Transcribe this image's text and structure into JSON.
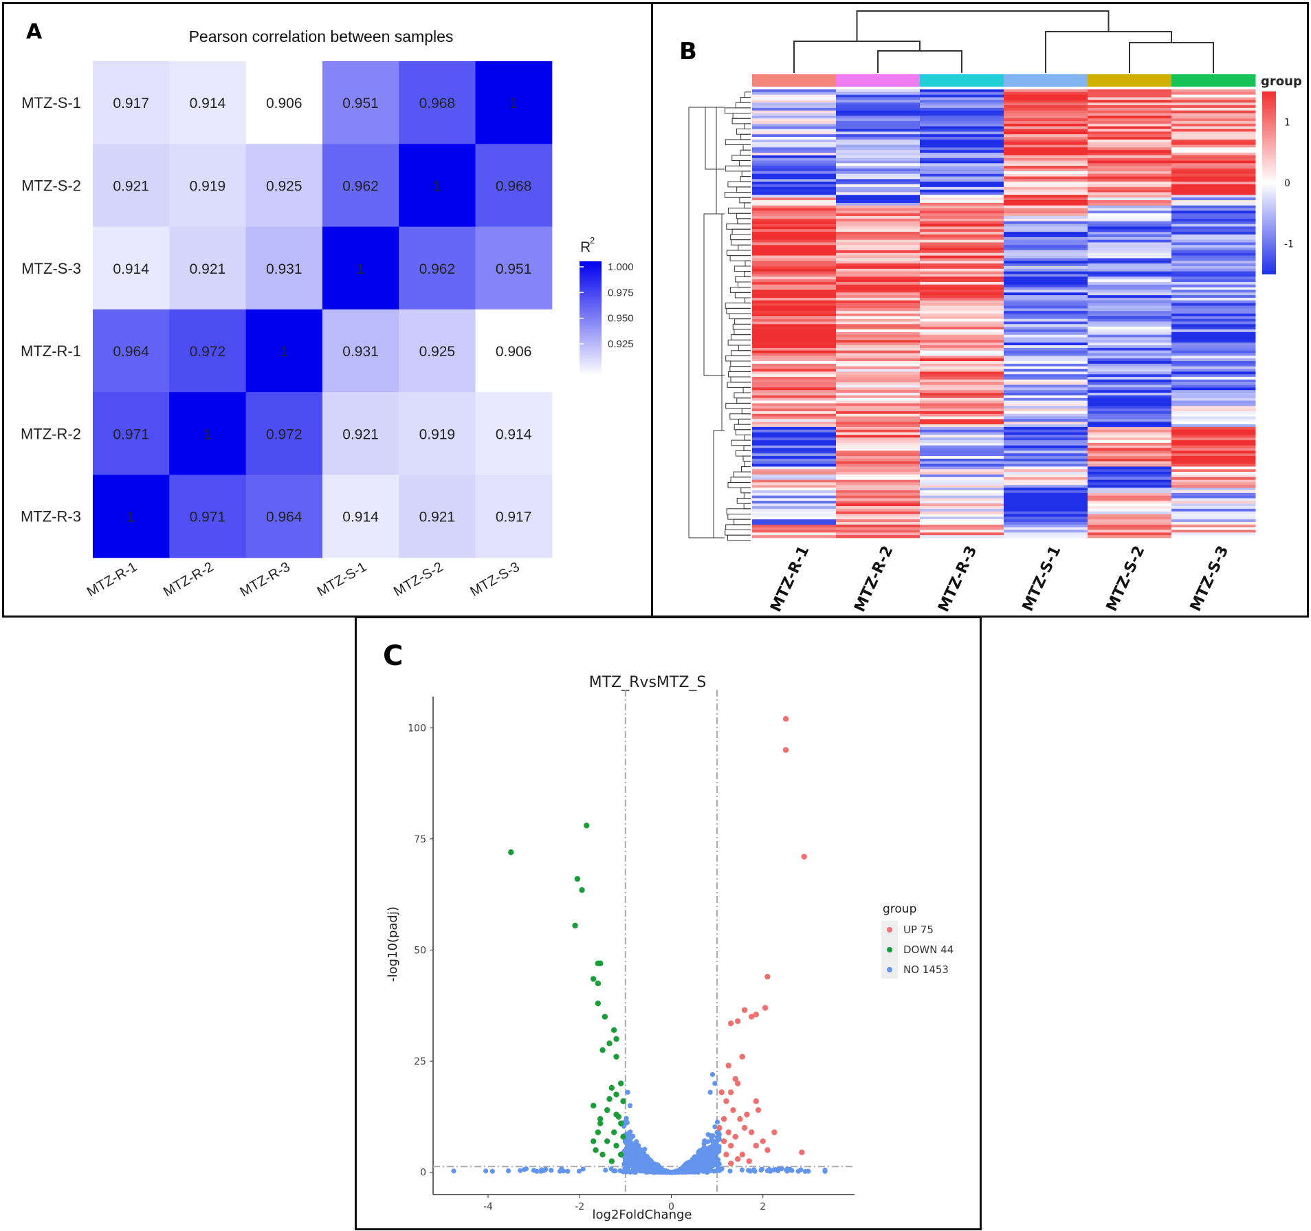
{
  "panels": {
    "a": "A",
    "b": "B",
    "c": "C"
  },
  "colors": {
    "heat_low": "#ffffff",
    "heat_high": "#0000ee",
    "hm_red": "#f03030",
    "hm_white": "#ffffff",
    "hm_blue": "#2030e8",
    "up": "#f07070",
    "down": "#1a9e3a",
    "no": "#6495ed",
    "group_colors": [
      "#f4857a",
      "#f07cf2",
      "#22cfd6",
      "#82b4f2",
      "#d2b000",
      "#18c458"
    ]
  },
  "chart_data": [
    {
      "type": "heatmap",
      "panel": "A",
      "title": "Pearson correlation between samples",
      "rows": [
        "MTZ-S-1",
        "MTZ-S-2",
        "MTZ-S-3",
        "MTZ-R-1",
        "MTZ-R-2",
        "MTZ-R-3"
      ],
      "columns": [
        "MTZ-R-1",
        "MTZ-R-2",
        "MTZ-R-3",
        "MTZ-S-1",
        "MTZ-S-2",
        "MTZ-S-3"
      ],
      "values": [
        [
          0.917,
          0.914,
          0.906,
          0.951,
          0.968,
          1
        ],
        [
          0.921,
          0.919,
          0.925,
          0.962,
          1,
          0.968
        ],
        [
          0.914,
          0.921,
          0.931,
          1,
          0.962,
          0.951
        ],
        [
          0.964,
          0.972,
          1,
          0.931,
          0.925,
          0.906
        ],
        [
          0.971,
          1,
          0.972,
          0.921,
          0.919,
          0.914
        ],
        [
          1,
          0.971,
          0.964,
          0.914,
          0.921,
          0.917
        ]
      ],
      "value_labels": [
        [
          "0.917",
          "0.914",
          "0.906",
          "0.951",
          "0.968",
          "1"
        ],
        [
          "0.921",
          "0.919",
          "0.925",
          "0.962",
          "1",
          "0.968"
        ],
        [
          "0.914",
          "0.921",
          "0.931",
          "1",
          "0.962",
          "0.951"
        ],
        [
          "0.964",
          "0.972",
          "1",
          "0.931",
          "0.925",
          "0.906"
        ],
        [
          "0.971",
          "1",
          "0.972",
          "0.921",
          "0.919",
          "0.914"
        ],
        [
          "1",
          "0.971",
          "0.964",
          "0.914",
          "0.921",
          "0.917"
        ]
      ],
      "legend": {
        "title": "R",
        "superscript": "2",
        "ticks": [
          "1.000",
          "0.975",
          "0.950",
          "0.925"
        ],
        "tick_values": [
          1.0,
          0.975,
          0.95,
          0.925
        ],
        "range": [
          0.906,
          1.0
        ]
      }
    },
    {
      "type": "heatmap",
      "panel": "B",
      "subtype": "clustered z-score heatmap",
      "columns": [
        "MTZ-R-1",
        "MTZ-R-2",
        "MTZ-R-3",
        "MTZ-S-1",
        "MTZ-S-2",
        "MTZ-S-3"
      ],
      "legend": {
        "title": "group",
        "ticks": [
          "1",
          "0",
          "-1"
        ],
        "tick_values": [
          1,
          0,
          -1
        ],
        "range": [
          -1.5,
          1.5
        ]
      },
      "blocks": [
        {
          "frac": 0.145,
          "values": [
            -0.3,
            -0.8,
            -1.1,
            1.1,
            0.8,
            0.6
          ]
        },
        {
          "frac": 0.09,
          "values": [
            -1.1,
            -0.5,
            -0.9,
            0.6,
            0.7,
            1.2
          ]
        },
        {
          "frac": 0.025,
          "values": [
            0.2,
            -1.0,
            0.3,
            1.2,
            0.5,
            -0.2
          ]
        },
        {
          "frac": 0.035,
          "values": [
            1.0,
            0.6,
            0.5,
            0.2,
            -0.6,
            -1.3
          ]
        },
        {
          "frac": 0.18,
          "values": [
            1.0,
            0.8,
            0.8,
            -0.9,
            -0.7,
            -0.6
          ]
        },
        {
          "frac": 0.12,
          "values": [
            1.1,
            0.6,
            0.5,
            -0.7,
            -0.6,
            -0.9
          ]
        },
        {
          "frac": 0.095,
          "values": [
            0.6,
            0.4,
            0.8,
            -0.4,
            -0.9,
            -0.7
          ]
        },
        {
          "frac": 0.065,
          "values": [
            0.5,
            0.6,
            0.7,
            -0.3,
            -1.2,
            -0.3
          ]
        },
        {
          "frac": 0.09,
          "values": [
            -1.2,
            0.7,
            -0.4,
            -0.9,
            0.6,
            1.2
          ]
        },
        {
          "frac": 0.045,
          "values": [
            0.3,
            0.6,
            -0.2,
            0.0,
            -1.3,
            0.6
          ]
        },
        {
          "frac": 0.08,
          "values": [
            -0.6,
            0.8,
            0.1,
            -1.4,
            0.3,
            -0.3
          ]
        },
        {
          "frac": 0.03,
          "values": [
            0.5,
            0.7,
            0.5,
            -0.4,
            0.8,
            0.4
          ]
        }
      ]
    },
    {
      "type": "scatter",
      "panel": "C",
      "title": "MTZ_RvsMTZ_S",
      "xlabel": "log2FoldChange",
      "ylabel": "-log10(padj)",
      "xlim": [
        -5.2,
        4.0
      ],
      "ylim": [
        -5,
        107
      ],
      "xticks": [
        -4,
        -2,
        0,
        2
      ],
      "xtick_labels": [
        "-4",
        "-2",
        "0",
        "2"
      ],
      "yticks": [
        0,
        25,
        50,
        75,
        100
      ],
      "ytick_labels": [
        "0",
        "25",
        "50",
        "75",
        "100"
      ],
      "thresholds": {
        "x": [
          -1,
          1
        ],
        "y": 1.3
      },
      "legend": {
        "title": "group",
        "entries": [
          "UP 75",
          "DOWN 44",
          "NO 1453"
        ]
      },
      "series": [
        {
          "name": "UP",
          "points": [
            [
              2.5,
              102
            ],
            [
              2.5,
              95
            ],
            [
              2.9,
              71
            ],
            [
              2.1,
              44
            ],
            [
              2.05,
              37
            ],
            [
              1.6,
              36.5
            ],
            [
              1.75,
              35
            ],
            [
              1.85,
              35.5
            ],
            [
              1.3,
              33.5
            ],
            [
              1.45,
              34
            ],
            [
              1.55,
              26
            ],
            [
              1.45,
              20
            ],
            [
              1.85,
              16
            ],
            [
              1.25,
              24
            ],
            [
              1.3,
              18
            ],
            [
              1.4,
              21
            ],
            [
              1.2,
              16
            ],
            [
              1.35,
              14
            ],
            [
              1.15,
              12
            ],
            [
              1.5,
              12
            ],
            [
              1.6,
              10
            ],
            [
              1.25,
              9
            ],
            [
              1.75,
              9
            ],
            [
              1.4,
              8
            ],
            [
              1.15,
              7
            ],
            [
              1.3,
              6
            ],
            [
              1.85,
              6
            ],
            [
              2.0,
              7
            ],
            [
              1.2,
              4
            ],
            [
              1.45,
              3
            ],
            [
              1.9,
              14
            ],
            [
              2.25,
              9
            ],
            [
              2.85,
              4.5
            ],
            [
              1.1,
              18
            ],
            [
              1.65,
              13
            ],
            [
              1.05,
              10
            ],
            [
              1.55,
              4
            ],
            [
              2.1,
              5
            ],
            [
              1.7,
              2.5
            ],
            [
              1.3,
              2
            ]
          ]
        },
        {
          "name": "DOWN",
          "points": [
            [
              -3.5,
              72
            ],
            [
              -1.85,
              78
            ],
            [
              -2.05,
              66
            ],
            [
              -1.95,
              63.5
            ],
            [
              -2.1,
              55.5
            ],
            [
              -1.6,
              47
            ],
            [
              -1.55,
              47
            ],
            [
              -1.7,
              43.5
            ],
            [
              -1.6,
              42.5
            ],
            [
              -1.6,
              38
            ],
            [
              -1.45,
              35
            ],
            [
              -1.25,
              32
            ],
            [
              -1.2,
              30
            ],
            [
              -1.35,
              29
            ],
            [
              -1.5,
              27.5
            ],
            [
              -1.2,
              26
            ],
            [
              -1.1,
              20
            ],
            [
              -1.3,
              19
            ],
            [
              -1.2,
              17.5
            ],
            [
              -1.05,
              16
            ],
            [
              -1.7,
              15
            ],
            [
              -1.4,
              14
            ],
            [
              -1.2,
              13
            ],
            [
              -1.55,
              11
            ],
            [
              -1.1,
              11
            ],
            [
              -1.25,
              9
            ],
            [
              -1.7,
              7
            ],
            [
              -1.4,
              7
            ],
            [
              -1.2,
              6
            ],
            [
              -1.65,
              5
            ],
            [
              -1.5,
              4
            ],
            [
              -1.1,
              4
            ],
            [
              -1.3,
              2.5
            ],
            [
              -1.55,
              12
            ],
            [
              -1.15,
              12.5
            ],
            [
              -1.35,
              16.5
            ],
            [
              -1.6,
              9
            ],
            [
              -1.05,
              8
            ]
          ]
        }
      ],
      "no_series": {
        "name": "NO",
        "count_label": "NO 1453"
      }
    }
  ]
}
